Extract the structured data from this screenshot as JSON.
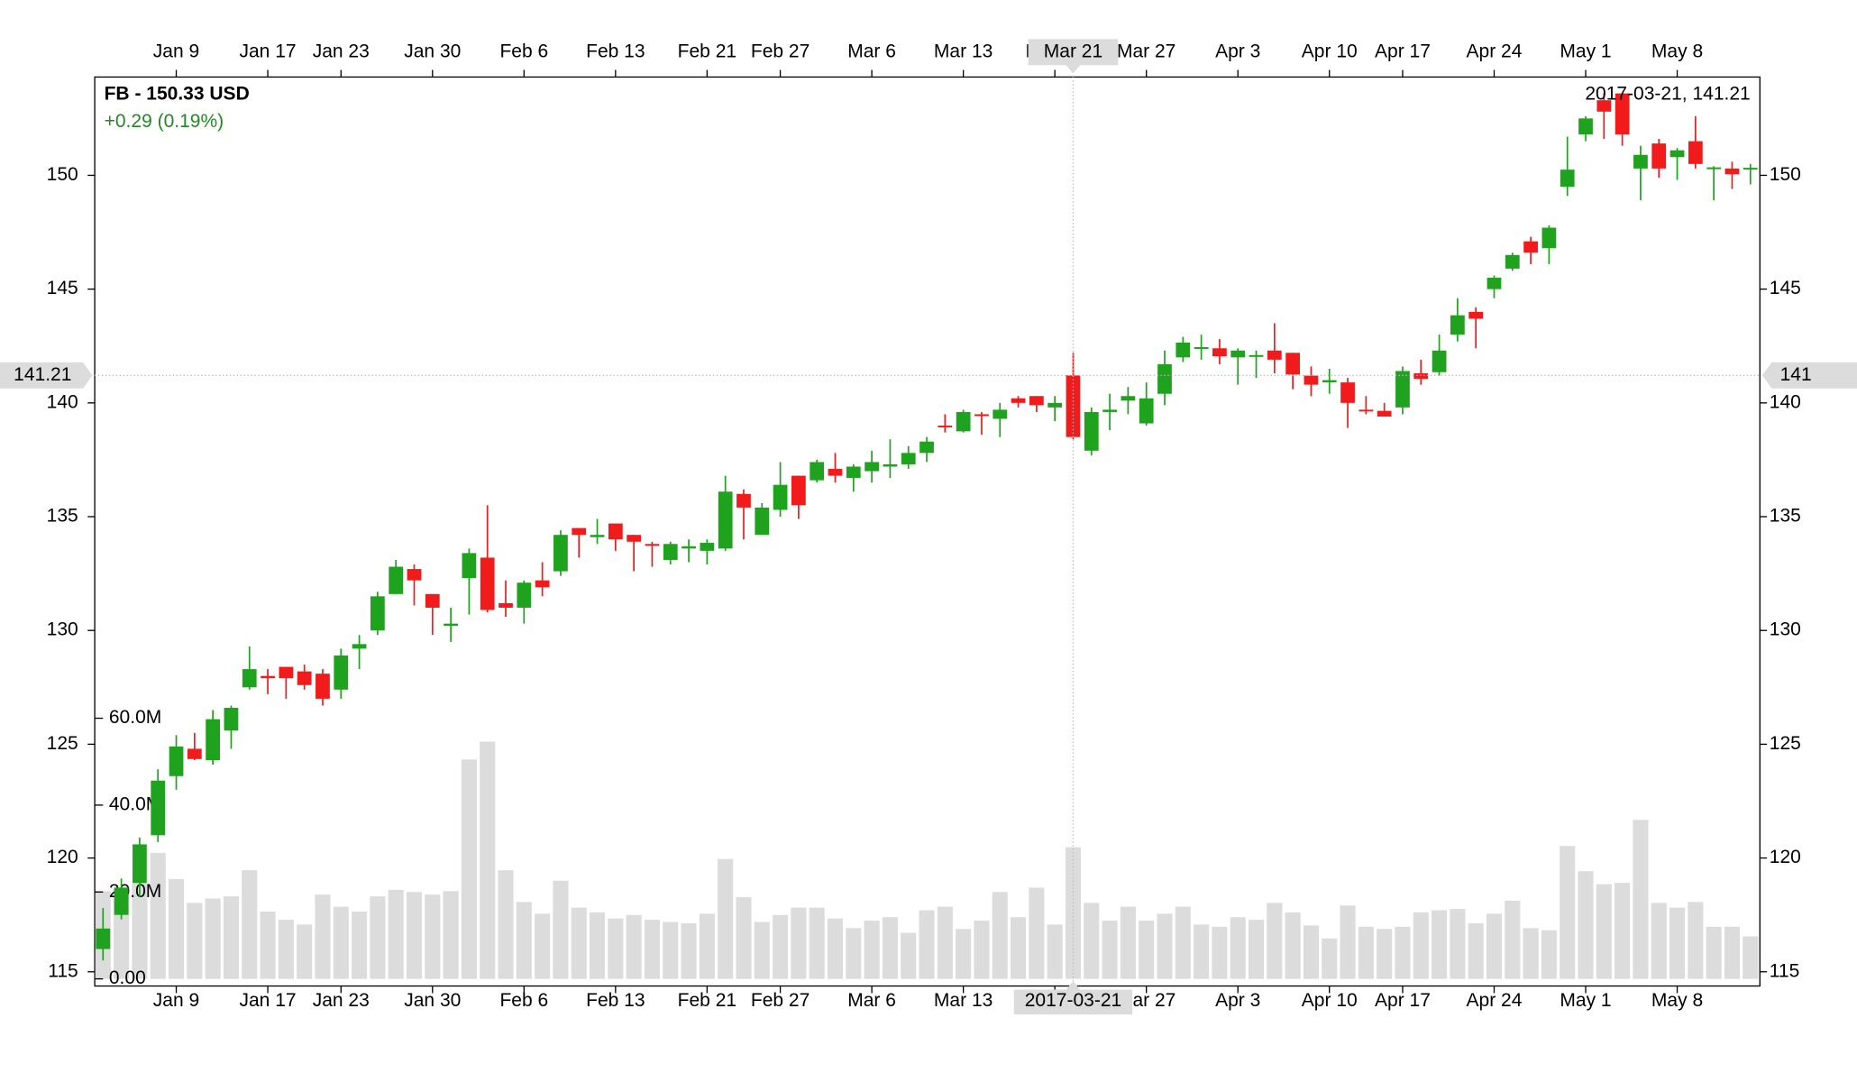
{
  "chart_data": {
    "type": "candlestick",
    "title": "FB - 150.33 USD",
    "subtitle": "+0.29 (0.19%)",
    "x": [
      "2017-01-03",
      "2017-01-04",
      "2017-01-05",
      "2017-01-06",
      "2017-01-09",
      "2017-01-10",
      "2017-01-11",
      "2017-01-12",
      "2017-01-13",
      "2017-01-17",
      "2017-01-18",
      "2017-01-19",
      "2017-01-20",
      "2017-01-23",
      "2017-01-24",
      "2017-01-25",
      "2017-01-26",
      "2017-01-27",
      "2017-01-30",
      "2017-01-31",
      "2017-02-01",
      "2017-02-02",
      "2017-02-03",
      "2017-02-06",
      "2017-02-07",
      "2017-02-08",
      "2017-02-09",
      "2017-02-10",
      "2017-02-13",
      "2017-02-14",
      "2017-02-15",
      "2017-02-16",
      "2017-02-17",
      "2017-02-21",
      "2017-02-22",
      "2017-02-23",
      "2017-02-24",
      "2017-02-27",
      "2017-02-28",
      "2017-03-01",
      "2017-03-02",
      "2017-03-03",
      "2017-03-06",
      "2017-03-07",
      "2017-03-08",
      "2017-03-09",
      "2017-03-10",
      "2017-03-13",
      "2017-03-14",
      "2017-03-15",
      "2017-03-16",
      "2017-03-17",
      "2017-03-20",
      "2017-03-21",
      "2017-03-22",
      "2017-03-23",
      "2017-03-24",
      "2017-03-27",
      "2017-03-28",
      "2017-03-29",
      "2017-03-30",
      "2017-03-31",
      "2017-04-03",
      "2017-04-04",
      "2017-04-05",
      "2017-04-06",
      "2017-04-07",
      "2017-04-10",
      "2017-04-11",
      "2017-04-12",
      "2017-04-13",
      "2017-04-17",
      "2017-04-18",
      "2017-04-19",
      "2017-04-20",
      "2017-04-21",
      "2017-04-24",
      "2017-04-25",
      "2017-04-26",
      "2017-04-27",
      "2017-04-28",
      "2017-05-01",
      "2017-05-02",
      "2017-05-03",
      "2017-05-04",
      "2017-05-05",
      "2017-05-08",
      "2017-05-09",
      "2017-05-10",
      "2017-05-11",
      "2017-05-12"
    ],
    "open": [
      116.0,
      117.5,
      118.9,
      121.0,
      123.6,
      124.8,
      124.3,
      125.6,
      127.5,
      128.0,
      128.4,
      128.2,
      128.1,
      127.4,
      129.2,
      130.0,
      131.6,
      132.7,
      131.6,
      130.2,
      132.3,
      133.2,
      131.2,
      131.0,
      132.2,
      132.6,
      134.5,
      134.1,
      134.7,
      134.2,
      133.8,
      133.1,
      133.6,
      133.5,
      133.6,
      136.0,
      134.2,
      135.3,
      136.8,
      136.6,
      137.1,
      136.7,
      137.0,
      137.2,
      137.3,
      137.8,
      139.0,
      138.75,
      139.5,
      139.3,
      140.2,
      140.3,
      139.8,
      141.21,
      137.9,
      139.6,
      140.1,
      139.1,
      140.4,
      142.0,
      142.4,
      142.4,
      142.0,
      142.05,
      142.3,
      142.2,
      141.2,
      140.9,
      140.9,
      139.7,
      139.65,
      139.8,
      141.3,
      141.35,
      143.0,
      144.0,
      145.0,
      145.9,
      147.1,
      146.8,
      149.5,
      151.8,
      153.3,
      153.6,
      150.3,
      151.4,
      150.8,
      151.5,
      150.3,
      150.3,
      150.3
    ],
    "high": [
      117.8,
      119.1,
      120.9,
      123.9,
      125.4,
      125.5,
      126.5,
      126.7,
      129.3,
      128.3,
      128.4,
      128.5,
      128.3,
      129.2,
      129.8,
      131.7,
      133.1,
      132.9,
      131.6,
      131.0,
      133.6,
      135.5,
      132.2,
      132.2,
      133.0,
      134.4,
      134.5,
      134.9,
      134.7,
      134.2,
      133.9,
      133.9,
      134.0,
      134.0,
      136.8,
      136.2,
      135.6,
      137.4,
      136.8,
      137.5,
      137.8,
      137.3,
      137.9,
      138.4,
      138.1,
      138.5,
      139.5,
      139.7,
      139.6,
      140.0,
      140.3,
      140.3,
      140.3,
      142.2,
      139.8,
      140.4,
      140.7,
      140.9,
      142.3,
      142.9,
      143.0,
      142.8,
      142.4,
      142.3,
      143.5,
      142.2,
      141.6,
      141.5,
      141.1,
      140.3,
      140.0,
      141.6,
      141.9,
      143.0,
      144.6,
      144.2,
      145.6,
      146.6,
      147.3,
      147.8,
      151.7,
      152.6,
      153.6,
      153.6,
      151.3,
      151.6,
      151.2,
      152.6,
      150.4,
      150.6,
      150.5
    ],
    "low": [
      115.5,
      117.3,
      118.3,
      120.7,
      123.0,
      124.3,
      124.1,
      124.8,
      127.4,
      127.2,
      127.0,
      127.4,
      126.7,
      127.0,
      128.3,
      129.8,
      131.6,
      131.1,
      129.8,
      129.5,
      130.7,
      130.8,
      130.6,
      130.3,
      131.5,
      132.4,
      133.2,
      133.8,
      133.5,
      132.6,
      132.8,
      132.9,
      133.0,
      132.9,
      133.5,
      134.0,
      134.2,
      135.0,
      134.9,
      136.5,
      136.5,
      136.1,
      136.5,
      136.7,
      137.1,
      137.4,
      138.7,
      138.7,
      138.6,
      138.5,
      139.8,
      139.6,
      139.2,
      138.4,
      137.7,
      138.8,
      139.5,
      139.0,
      139.9,
      141.8,
      141.9,
      141.7,
      140.8,
      141.1,
      141.3,
      140.6,
      140.3,
      140.4,
      138.9,
      139.5,
      139.4,
      139.5,
      140.8,
      141.2,
      142.7,
      142.4,
      144.6,
      145.8,
      146.1,
      146.1,
      149.1,
      151.5,
      151.6,
      151.3,
      148.9,
      149.9,
      149.8,
      150.3,
      148.9,
      149.4,
      149.6
    ],
    "close": [
      116.9,
      118.7,
      120.6,
      123.4,
      124.9,
      124.35,
      126.1,
      126.6,
      128.3,
      127.9,
      127.9,
      127.6,
      127.0,
      128.9,
      129.4,
      131.5,
      132.8,
      132.2,
      131.0,
      130.3,
      133.4,
      130.9,
      131.0,
      132.1,
      131.9,
      134.2,
      134.2,
      134.2,
      134.0,
      133.9,
      133.75,
      133.8,
      133.7,
      133.85,
      136.1,
      135.4,
      135.4,
      136.4,
      135.5,
      137.4,
      136.8,
      137.2,
      137.4,
      137.3,
      137.8,
      138.3,
      138.95,
      139.6,
      139.45,
      139.7,
      140.0,
      139.9,
      140.0,
      138.5,
      139.6,
      139.7,
      140.3,
      140.2,
      141.7,
      142.65,
      142.45,
      142.05,
      142.3,
      142.1,
      141.9,
      141.25,
      140.8,
      141.0,
      140.0,
      139.65,
      139.4,
      141.4,
      141.05,
      142.3,
      143.85,
      143.7,
      145.5,
      146.5,
      146.6,
      147.7,
      150.25,
      152.5,
      152.8,
      151.8,
      150.9,
      150.3,
      151.1,
      150.5,
      150.35,
      150.05,
      150.33
    ],
    "volume": [
      20200000,
      21000000,
      22000000,
      29000000,
      23000000,
      17500000,
      18500000,
      19000000,
      25000000,
      15500000,
      13600000,
      12500000,
      19400000,
      16600000,
      15500000,
      19000000,
      20500000,
      20000000,
      19400000,
      20200000,
      50500000,
      54600000,
      25000000,
      17700000,
      15000000,
      22600000,
      16400000,
      15300000,
      13900000,
      14700000,
      13600000,
      13100000,
      12800000,
      15000000,
      27600000,
      18800000,
      13100000,
      14700000,
      16400000,
      16400000,
      13900000,
      11700000,
      13400000,
      14200000,
      10600000,
      15800000,
      16600000,
      11500000,
      13400000,
      20000000,
      14200000,
      21000000,
      12500000,
      30300000,
      17500000,
      13400000,
      16600000,
      13400000,
      15000000,
      16600000,
      12500000,
      12000000,
      14200000,
      13600000,
      17500000,
      15300000,
      12300000,
      9300000,
      16900000,
      12000000,
      11500000,
      12000000,
      15300000,
      15800000,
      16100000,
      12800000,
      15000000,
      18000000,
      11700000,
      11200000,
      30600000,
      24800000,
      21800000,
      22100000,
      36600000,
      17500000,
      16400000,
      17700000,
      12000000,
      12000000,
      9800000
    ],
    "up_color": "#1fa31f",
    "down_color": "#f21b1b",
    "volume_color": "#dcdcdc",
    "subtitle_color": "#1f8a1f",
    "ylim": [
      114.375,
      154.32
    ],
    "yticks": [
      115,
      120,
      125,
      130,
      135,
      140,
      145,
      150
    ],
    "vlim": [
      -1640000,
      207600000
    ],
    "vticks": [
      {
        "value": 0,
        "label": "0.00"
      },
      {
        "value": 20000000,
        "label": "20.0M"
      },
      {
        "value": 40000000,
        "label": "40.0M"
      },
      {
        "value": 60000000,
        "label": "60.0M"
      }
    ],
    "xticks": [
      {
        "value": "2017-01-09",
        "label": "Jan 9"
      },
      {
        "value": "2017-01-17",
        "label": "Jan 17"
      },
      {
        "value": "2017-01-23",
        "label": "Jan 23"
      },
      {
        "value": "2017-01-30",
        "label": "Jan 30"
      },
      {
        "value": "2017-02-06",
        "label": "Feb 6"
      },
      {
        "value": "2017-02-13",
        "label": "Feb 13"
      },
      {
        "value": "2017-02-21",
        "label": "Feb 21"
      },
      {
        "value": "2017-02-27",
        "label": "Feb 27"
      },
      {
        "value": "2017-03-06",
        "label": "Mar 6"
      },
      {
        "value": "2017-03-13",
        "label": "Mar 13"
      },
      {
        "value": "2017-03-20",
        "label": "Mar 20"
      },
      {
        "value": "2017-03-27",
        "label": "Mar 27"
      },
      {
        "value": "2017-04-03",
        "label": "Apr 3"
      },
      {
        "value": "2017-04-10",
        "label": "Apr 10"
      },
      {
        "value": "2017-04-17",
        "label": "Apr 17"
      },
      {
        "value": "2017-04-24",
        "label": "Apr 24"
      },
      {
        "value": "2017-05-01",
        "label": "May 1"
      },
      {
        "value": "2017-05-08",
        "label": "May 8"
      }
    ],
    "crosshair": {
      "x": "2017-03-21",
      "x_label_top": "Mar 21",
      "y": 141.21,
      "y2_label": "141",
      "info": "2017-03-21, 141.21"
    }
  }
}
